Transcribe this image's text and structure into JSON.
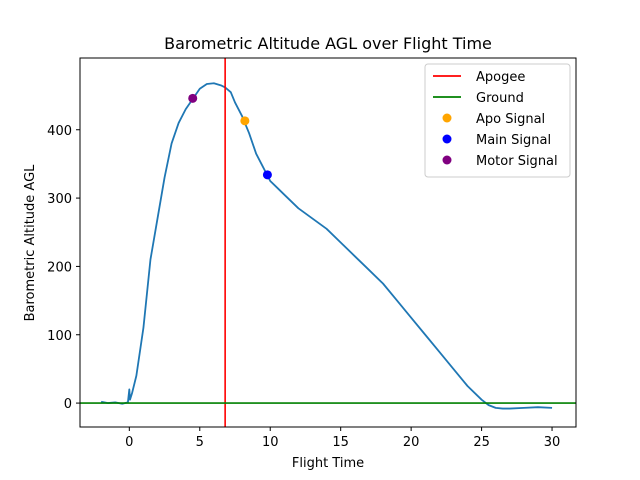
{
  "chart_data": {
    "type": "line",
    "title": "Barometric Altitude AGL over Flight Time",
    "xlabel": "Flight Time",
    "ylabel": "Barometric Altitude AGL",
    "xlim": [
      -3.5,
      31.7
    ],
    "ylim": [
      -35,
      505
    ],
    "xticks": [
      0,
      5,
      10,
      15,
      20,
      25,
      30
    ],
    "yticks": [
      0,
      100,
      200,
      300,
      400
    ],
    "grid": false,
    "legend_position": "top-right",
    "series": [
      {
        "name": "",
        "kind": "line",
        "color": "#1f77b4",
        "x": [
          -2,
          -1.5,
          -1,
          -0.5,
          -0.1,
          0,
          0.05,
          0.2,
          0.5,
          1,
          1.5,
          2,
          2.5,
          3,
          3.5,
          4,
          4.5,
          5,
          5.5,
          6,
          6.5,
          6.8,
          7.2,
          7.5,
          8,
          8.5,
          9,
          9.5,
          10,
          10.5,
          11,
          12,
          13,
          14,
          15,
          16,
          17,
          18,
          19,
          20,
          21,
          22,
          23,
          24,
          25,
          25.5,
          26,
          26.5,
          27,
          28,
          29,
          30
        ],
        "y": [
          2,
          0,
          1,
          -1,
          1,
          20,
          5,
          15,
          40,
          110,
          210,
          270,
          330,
          380,
          410,
          430,
          445,
          460,
          467,
          468,
          465,
          462,
          455,
          440,
          420,
          395,
          365,
          345,
          325,
          315,
          305,
          285,
          270,
          255,
          235,
          215,
          195,
          175,
          150,
          125,
          100,
          75,
          50,
          25,
          5,
          -3,
          -7,
          -8,
          -8,
          -7,
          -6,
          -7
        ]
      },
      {
        "name": "Apogee",
        "kind": "vline",
        "color": "#ff0000",
        "x": 6.8
      },
      {
        "name": "Ground",
        "kind": "hline",
        "color": "#008000",
        "y": 0
      },
      {
        "name": "Apo Signal",
        "kind": "scatter",
        "color": "#ffa500",
        "points": [
          [
            8.2,
            413
          ]
        ]
      },
      {
        "name": "Main Signal",
        "kind": "scatter",
        "color": "#0000ff",
        "points": [
          [
            9.8,
            334
          ]
        ]
      },
      {
        "name": "Motor Signal",
        "kind": "scatter",
        "color": "#800080",
        "points": [
          [
            4.5,
            446
          ]
        ]
      }
    ]
  }
}
